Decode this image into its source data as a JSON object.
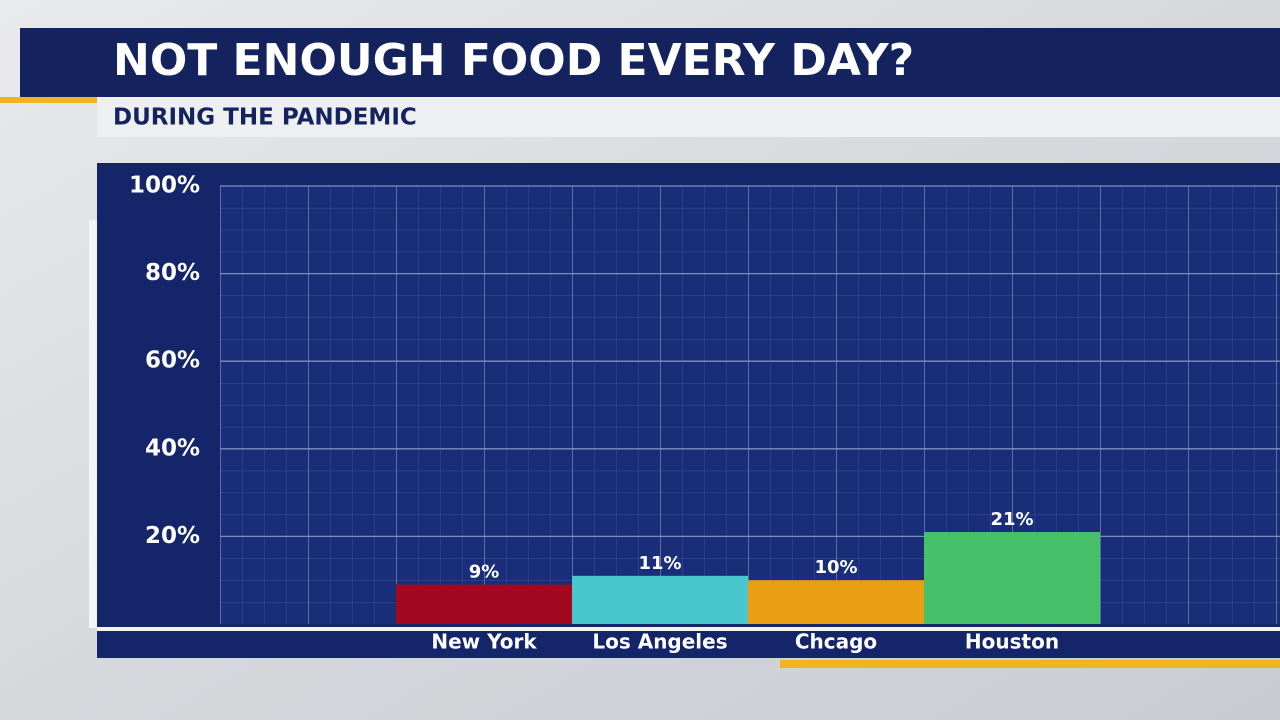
{
  "chart_data": {
    "type": "bar",
    "title": "NOT ENOUGH FOOD EVERY DAY?",
    "subtitle": "DURING THE PANDEMIC",
    "categories": [
      "New York",
      "Los Angeles",
      "Chcago",
      "Houston"
    ],
    "values": [
      9,
      11,
      10,
      21
    ],
    "value_labels": [
      "9%",
      "11%",
      "10%",
      "21%"
    ],
    "colors": [
      "#a2081f",
      "#4ac6cf",
      "#e89f14",
      "#47c06a"
    ],
    "ylim": [
      0,
      100
    ],
    "yticks": [
      {
        "value": 20,
        "label": "20%"
      },
      {
        "value": 40,
        "label": "40%"
      },
      {
        "value": 60,
        "label": "60%"
      },
      {
        "value": 80,
        "label": "80%"
      },
      {
        "value": 100,
        "label": "100%"
      }
    ],
    "grid": true
  }
}
